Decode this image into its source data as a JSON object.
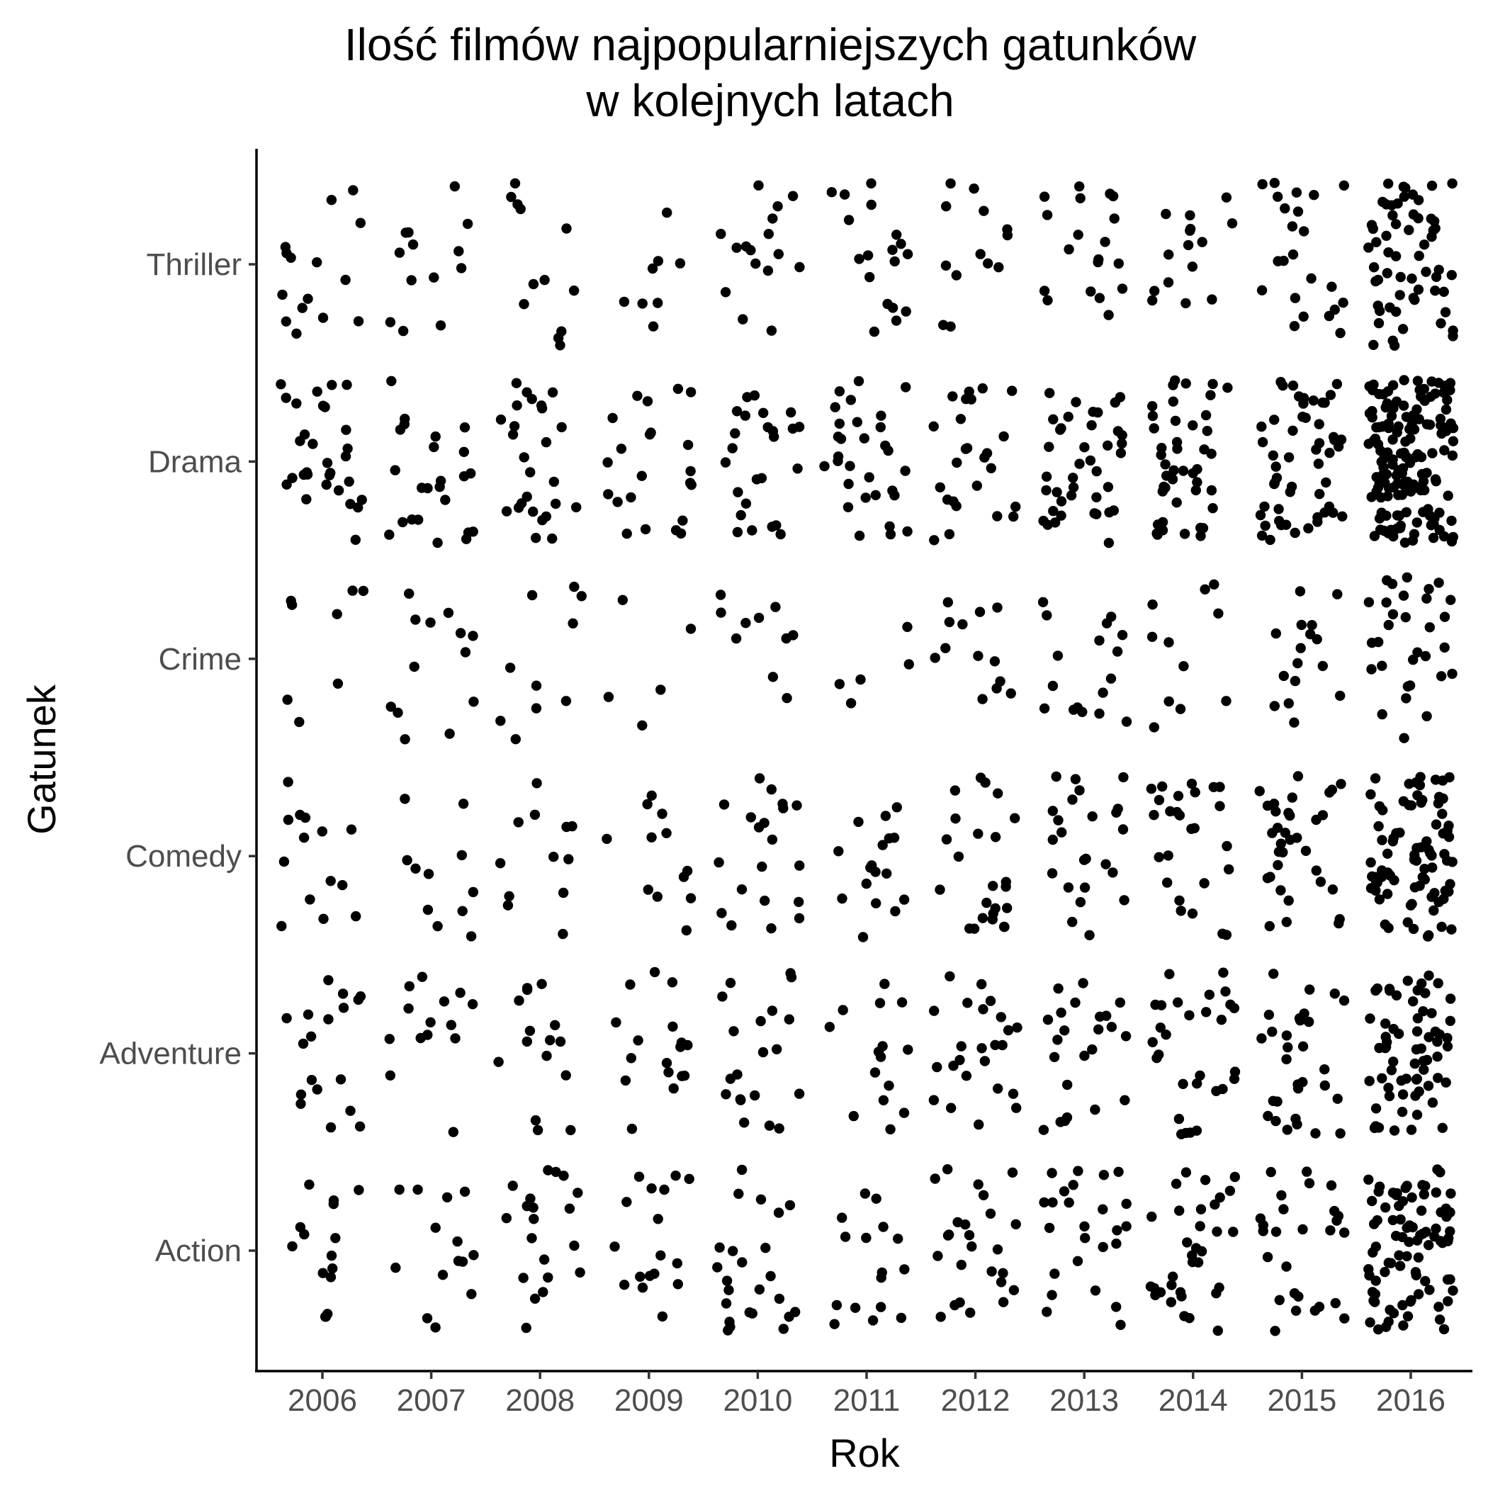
{
  "chart_data": {
    "type": "scatter",
    "title_lines": [
      "Ilość filmów najpopularniejszych gatunków",
      "w kolejnych latach"
    ],
    "xlabel": "Rok",
    "ylabel": "Gatunek",
    "x_categories": [
      "2006",
      "2007",
      "2008",
      "2009",
      "2010",
      "2011",
      "2012",
      "2013",
      "2014",
      "2015",
      "2016"
    ],
    "y_categories": [
      "Action",
      "Adventure",
      "Comedy",
      "Crime",
      "Drama",
      "Thriller"
    ],
    "jittered": true,
    "grid": false,
    "legend": "none",
    "point_color": "#000000",
    "counts": {
      "Thriller": [
        15,
        13,
        12,
        8,
        16,
        18,
        13,
        19,
        15,
        23,
        60
      ],
      "Drama": [
        30,
        24,
        26,
        22,
        25,
        30,
        25,
        40,
        44,
        53,
        158
      ],
      "Crime": [
        8,
        13,
        10,
        5,
        10,
        5,
        13,
        17,
        11,
        16,
        31
      ],
      "Comedy": [
        14,
        11,
        12,
        12,
        20,
        17,
        24,
        24,
        26,
        34,
        84
      ],
      "Adventure": [
        18,
        14,
        15,
        17,
        20,
        15,
        24,
        23,
        29,
        30,
        66
      ],
      "Action": [
        15,
        14,
        20,
        17,
        24,
        16,
        25,
        25,
        33,
        27,
        86
      ]
    }
  }
}
